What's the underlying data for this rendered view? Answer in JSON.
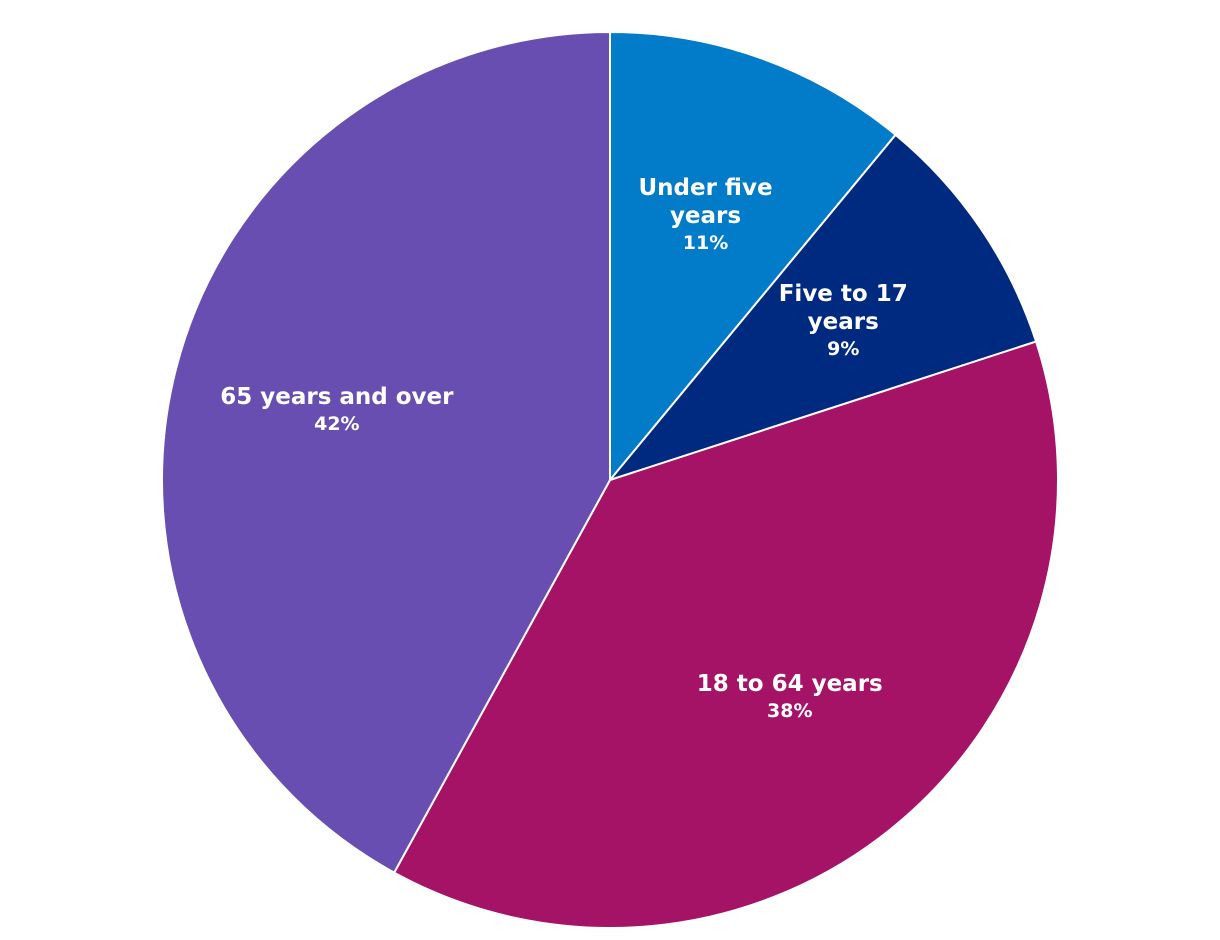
{
  "chart_data": {
    "type": "pie",
    "categories": [
      "Under five years",
      "Five to 17 years",
      "18 to 64 years",
      "65 years and over"
    ],
    "values": [
      11,
      9,
      38,
      42
    ],
    "value_labels": [
      "11%",
      "9%",
      "38%",
      "42%"
    ],
    "colors": [
      "#027bc9",
      "#002a7f",
      "#a51366",
      "#684eb0"
    ]
  }
}
